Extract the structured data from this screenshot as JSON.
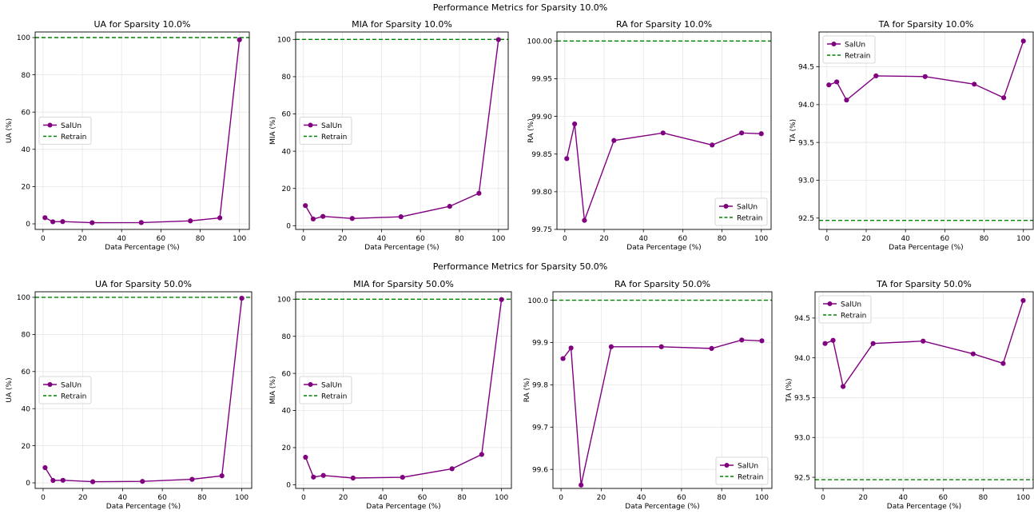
{
  "suptitles": [
    "Performance Metrics for Sparsity 10.0%",
    "Performance Metrics for Sparsity 50.0%"
  ],
  "colors": {
    "salun": "#800080",
    "retrain": "#008000",
    "grid": "#e6e6e6",
    "axis": "#000000"
  },
  "chart_data": [
    {
      "type": "line",
      "title": "UA for Sparsity 10.0%",
      "xlabel": "Data Percentage (%)",
      "ylabel": "UA (%)",
      "xlim": [
        -4,
        105
      ],
      "ylim": [
        -3,
        103
      ],
      "xticks": [
        0,
        20,
        40,
        60,
        80,
        100
      ],
      "yticks": [
        0,
        20,
        40,
        60,
        80,
        100
      ],
      "ytick_labels": [
        "0",
        "20",
        "40",
        "60",
        "80",
        "100"
      ],
      "legend": "center-left",
      "retrain": 100,
      "series": [
        {
          "name": "SalUn",
          "x": [
            1,
            5,
            10,
            25,
            50,
            75,
            90,
            100
          ],
          "y": [
            3.3,
            1.1,
            1.2,
            0.6,
            0.7,
            1.6,
            3.2,
            98.8
          ]
        },
        {
          "name": "Retrain"
        }
      ]
    },
    {
      "type": "line",
      "title": "MIA for Sparsity 10.0%",
      "xlabel": "Data Percentage (%)",
      "ylabel": "MIA (%)",
      "xlim": [
        -4,
        105
      ],
      "ylim": [
        -2,
        104
      ],
      "xticks": [
        0,
        20,
        40,
        60,
        80,
        100
      ],
      "yticks": [
        0,
        20,
        40,
        60,
        80,
        100
      ],
      "ytick_labels": [
        "0",
        "20",
        "40",
        "60",
        "80",
        "100"
      ],
      "legend": "center-left",
      "retrain": 100,
      "series": [
        {
          "name": "SalUn",
          "x": [
            1,
            5,
            10,
            25,
            50,
            75,
            90,
            100
          ],
          "y": [
            10.8,
            3.6,
            5.0,
            3.9,
            4.8,
            10.4,
            17.4,
            99.9
          ]
        },
        {
          "name": "Retrain"
        }
      ]
    },
    {
      "type": "line",
      "title": "RA for Sparsity 10.0%",
      "xlabel": "Data Percentage (%)",
      "ylabel": "RA (%)",
      "xlim": [
        -4,
        105
      ],
      "ylim": [
        99.75,
        100.012
      ],
      "xticks": [
        0,
        20,
        40,
        60,
        80,
        100
      ],
      "yticks": [
        99.75,
        99.8,
        99.85,
        99.9,
        99.95,
        100.0
      ],
      "ytick_labels": [
        "99.75",
        "99.80",
        "99.85",
        "99.90",
        "99.95",
        "100.00"
      ],
      "legend": "lower-right",
      "retrain": 100.0,
      "series": [
        {
          "name": "SalUn",
          "x": [
            1,
            5,
            10,
            25,
            50,
            75,
            90,
            100
          ],
          "y": [
            99.844,
            99.89,
            99.762,
            99.868,
            99.878,
            99.862,
            99.878,
            99.877
          ]
        },
        {
          "name": "Retrain"
        }
      ]
    },
    {
      "type": "line",
      "title": "TA for Sparsity 10.0%",
      "xlabel": "Data Percentage (%)",
      "ylabel": "TA (%)",
      "xlim": [
        -4,
        105
      ],
      "ylim": [
        92.35,
        94.96
      ],
      "xticks": [
        0,
        20,
        40,
        60,
        80,
        100
      ],
      "yticks": [
        92.5,
        93.0,
        93.5,
        94.0,
        94.5
      ],
      "ytick_labels": [
        "92.5",
        "93.0",
        "93.5",
        "94.0",
        "94.5"
      ],
      "legend": "upper-left",
      "retrain": 92.47,
      "series": [
        {
          "name": "SalUn",
          "x": [
            1,
            5,
            10,
            25,
            50,
            75,
            90,
            100
          ],
          "y": [
            94.26,
            94.3,
            94.06,
            94.38,
            94.37,
            94.27,
            94.09,
            94.84
          ]
        },
        {
          "name": "Retrain"
        }
      ]
    },
    {
      "type": "line",
      "title": "UA for Sparsity 50.0%",
      "xlabel": "Data Percentage (%)",
      "ylabel": "UA (%)",
      "xlim": [
        -4,
        105
      ],
      "ylim": [
        -3,
        103
      ],
      "xticks": [
        0,
        20,
        40,
        60,
        80,
        100
      ],
      "yticks": [
        0,
        20,
        40,
        60,
        80,
        100
      ],
      "ytick_labels": [
        "0",
        "20",
        "40",
        "60",
        "80",
        "100"
      ],
      "legend": "center-left",
      "retrain": 100,
      "series": [
        {
          "name": "SalUn",
          "x": [
            1,
            5,
            10,
            25,
            50,
            75,
            90,
            100
          ],
          "y": [
            8.2,
            1.3,
            1.4,
            0.6,
            0.8,
            1.9,
            3.8,
            99.5
          ]
        },
        {
          "name": "Retrain"
        }
      ]
    },
    {
      "type": "line",
      "title": "MIA for Sparsity 50.0%",
      "xlabel": "Data Percentage (%)",
      "ylabel": "MIA (%)",
      "xlim": [
        -4,
        105
      ],
      "ylim": [
        -2,
        104
      ],
      "xticks": [
        0,
        20,
        40,
        60,
        80,
        100
      ],
      "yticks": [
        0,
        20,
        40,
        60,
        80,
        100
      ],
      "ytick_labels": [
        "0",
        "20",
        "40",
        "60",
        "80",
        "100"
      ],
      "legend": "center-left",
      "retrain": 100,
      "series": [
        {
          "name": "SalUn",
          "x": [
            1,
            5,
            10,
            25,
            50,
            75,
            90,
            100
          ],
          "y": [
            14.8,
            4.1,
            5.0,
            3.6,
            4.0,
            8.6,
            16.3,
            99.8
          ]
        },
        {
          "name": "Retrain"
        }
      ]
    },
    {
      "type": "line",
      "title": "RA for Sparsity 50.0%",
      "xlabel": "Data Percentage (%)",
      "ylabel": "RA (%)",
      "xlim": [
        -4,
        105
      ],
      "ylim": [
        99.555,
        100.02
      ],
      "xticks": [
        0,
        20,
        40,
        60,
        80,
        100
      ],
      "yticks": [
        99.6,
        99.7,
        99.8,
        99.9,
        100.0
      ],
      "ytick_labels": [
        "99.6",
        "99.7",
        "99.8",
        "99.9",
        "100.0"
      ],
      "legend": "lower-right",
      "retrain": 100.0,
      "series": [
        {
          "name": "SalUn",
          "x": [
            1,
            5,
            10,
            25,
            50,
            75,
            90,
            100
          ],
          "y": [
            99.862,
            99.887,
            99.563,
            99.89,
            99.89,
            99.886,
            99.906,
            99.904
          ]
        },
        {
          "name": "Retrain"
        }
      ]
    },
    {
      "type": "line",
      "title": "TA for Sparsity 50.0%",
      "xlabel": "Data Percentage (%)",
      "ylabel": "TA (%)",
      "xlim": [
        -4,
        105
      ],
      "ylim": [
        92.36,
        94.83
      ],
      "xticks": [
        0,
        20,
        40,
        60,
        80,
        100
      ],
      "yticks": [
        92.5,
        93.0,
        93.5,
        94.0,
        94.5
      ],
      "ytick_labels": [
        "92.5",
        "93.0",
        "93.5",
        "94.0",
        "94.5"
      ],
      "legend": "upper-left",
      "retrain": 92.47,
      "series": [
        {
          "name": "SalUn",
          "x": [
            1,
            5,
            10,
            25,
            50,
            75,
            90,
            100
          ],
          "y": [
            94.18,
            94.22,
            93.64,
            94.18,
            94.21,
            94.05,
            93.93,
            94.72
          ]
        },
        {
          "name": "Retrain"
        }
      ]
    }
  ]
}
